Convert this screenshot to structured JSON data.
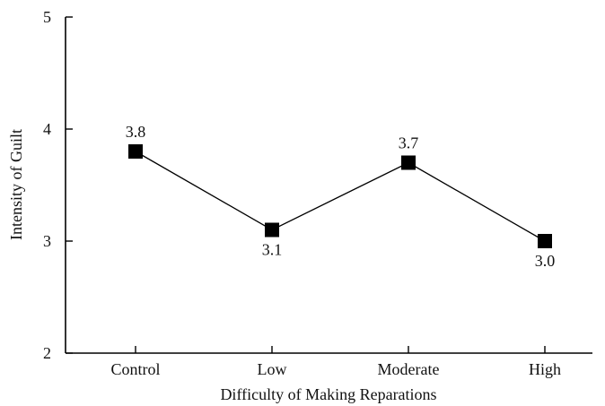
{
  "chart_data": {
    "type": "line",
    "title": "",
    "xlabel": "Difficulty of Making Reparations",
    "ylabel": "Intensity of Guilt",
    "categories": [
      "Control",
      "Low",
      "Moderate",
      "High"
    ],
    "series": [
      {
        "values": [
          3.8,
          3.1,
          3.7,
          3.0
        ],
        "data_labels": [
          "3.8",
          "3.1",
          "3.7",
          "3.0"
        ],
        "marker": "square",
        "color": "#000000"
      }
    ],
    "ylim": [
      2,
      5
    ],
    "yticks": [
      "2",
      "3",
      "4",
      "5"
    ],
    "grid": false,
    "legend": "none"
  }
}
